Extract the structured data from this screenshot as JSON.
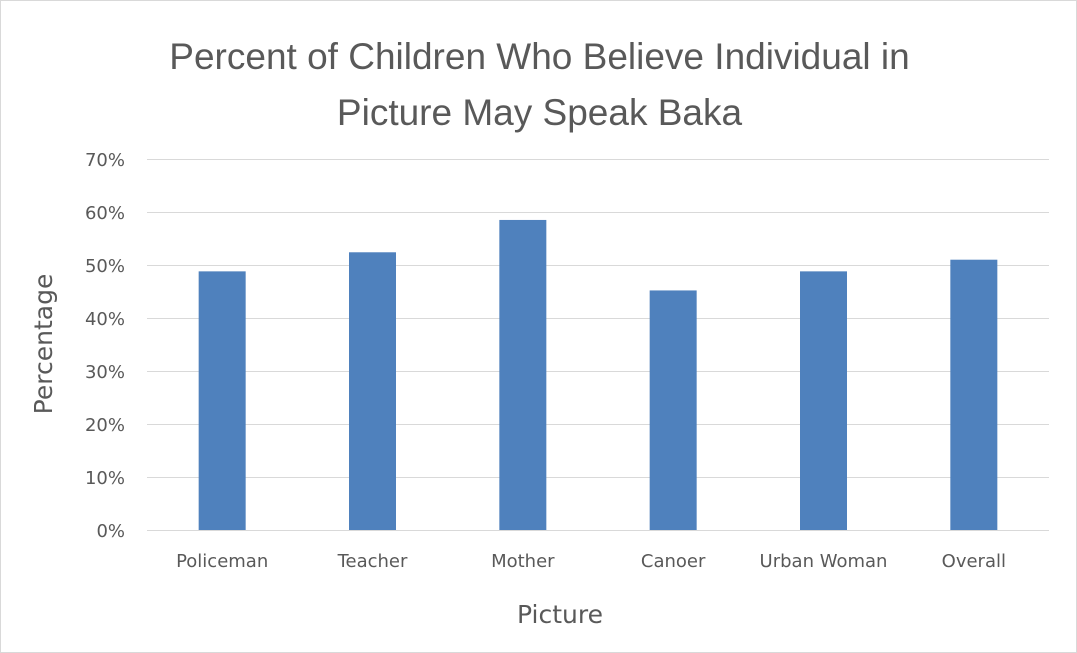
{
  "chart_data": {
    "type": "bar",
    "title_lines": [
      "Percent of Children Who Believe Individual in",
      "Picture May Speak Baka"
    ],
    "xlabel": "Picture",
    "ylabel": "Percentage",
    "categories": [
      "Policeman",
      "Teacher",
      "Mother",
      "Canoer",
      "Urban Woman",
      "Overall"
    ],
    "series": [
      {
        "values": [
          48.8,
          52.4,
          58.5,
          45.2,
          48.8,
          51.0
        ]
      }
    ],
    "ylim": [
      0,
      70
    ],
    "yticks": [
      0,
      10,
      20,
      30,
      40,
      50,
      60,
      70
    ],
    "ytick_labels": [
      "0%",
      "10%",
      "20%",
      "30%",
      "40%",
      "50%",
      "60%",
      "70%"
    ],
    "grid": true,
    "legend": "none",
    "bar_color": "#4f81bd",
    "grid_color": "#d9d9d9",
    "text_color": "#595959"
  }
}
